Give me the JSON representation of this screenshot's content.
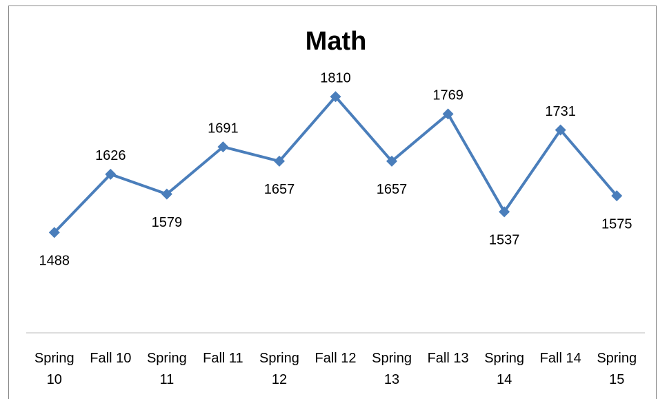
{
  "chart_data": {
    "type": "line",
    "title": "Math",
    "categories": [
      "Spring 10",
      "Fall 10",
      "Spring 11",
      "Fall 11",
      "Spring 12",
      "Fall 12",
      "Spring 13",
      "Fall 13",
      "Spring 14",
      "Fall 14",
      "Spring 15"
    ],
    "values": [
      1488,
      1626,
      1579,
      1691,
      1657,
      1810,
      1657,
      1769,
      1537,
      1731,
      1575
    ],
    "color": "#4a7ebb",
    "ylim": [
      1250,
      2000
    ],
    "grid": false
  }
}
